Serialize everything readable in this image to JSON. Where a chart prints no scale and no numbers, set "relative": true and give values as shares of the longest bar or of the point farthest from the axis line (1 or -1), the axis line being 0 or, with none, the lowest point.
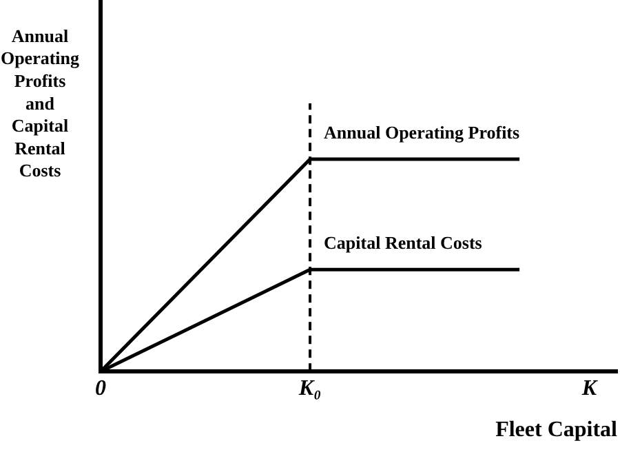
{
  "chart_data": {
    "type": "line",
    "relative": true,
    "xlabel": "Fleet Capital",
    "ylabel": "Annual Operating Profits and Capital Rental Costs",
    "categories": [
      "0",
      null,
      null,
      "K₀",
      null,
      null,
      null,
      "K"
    ],
    "series": [
      {
        "name": "Annual Operating Profits",
        "color": "#000000",
        "values": [
          0,
          null,
          null,
          1,
          null,
          null,
          1,
          null
        ]
      },
      {
        "name": "Capital Rental Costs",
        "color": "#000000",
        "values": [
          0,
          null,
          null,
          0.48,
          null,
          null,
          0.48,
          null
        ]
      }
    ],
    "ref_lines": [
      {
        "axis": "x",
        "value": "K₀",
        "line_style": "dashed",
        "color": "#000000"
      }
    ],
    "grid": false,
    "legend": false,
    "marker": "none",
    "line_style": "solid"
  }
}
